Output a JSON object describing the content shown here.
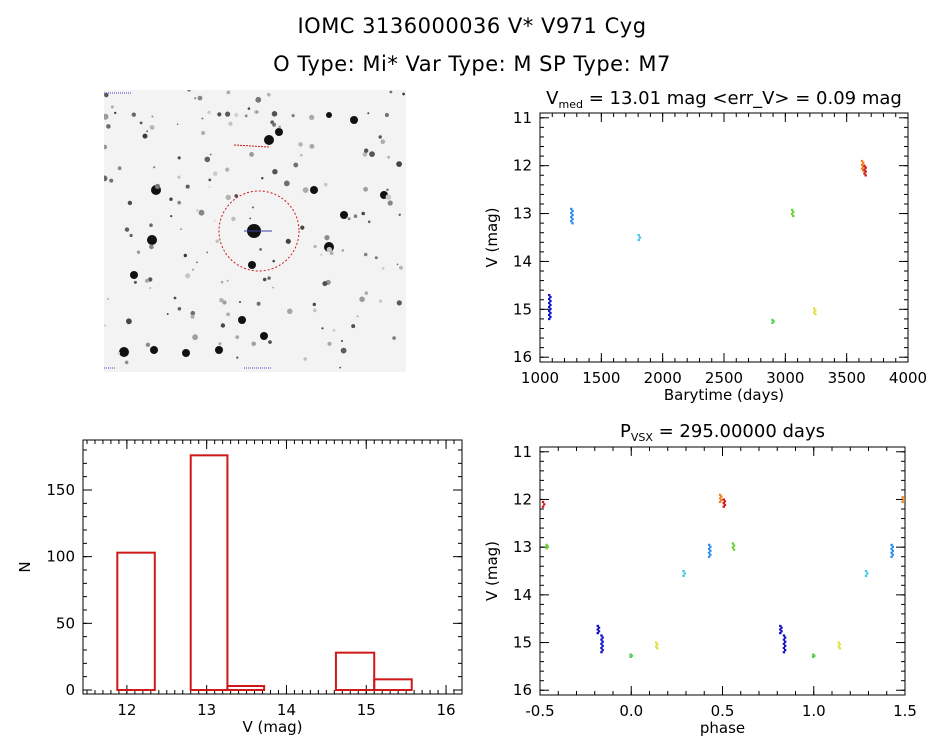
{
  "header": {
    "line1": "IOMC 3136000036    V* V971 Cyg",
    "line2": "O Type: Mi*  Var Type: M  SP Type: M7"
  },
  "chart_data": [
    {
      "type": "scatter",
      "title_parts": {
        "pre": "V",
        "sub": "med",
        "post": " = 13.01 mag <err_V> = 0.09 mag"
      },
      "xlabel": "Barytime (days)",
      "ylabel": "V (mag)",
      "xlim": [
        1000,
        4000
      ],
      "ylim": [
        16.1,
        10.9
      ],
      "xticks": [
        1000,
        1500,
        2000,
        2500,
        3000,
        3500,
        4000
      ],
      "yticks": [
        11,
        12,
        13,
        14,
        15,
        16
      ],
      "groups": [
        {
          "x": 1080,
          "y0": 14.7,
          "y1": 15.2,
          "color": "#1010c8"
        },
        {
          "x": 1260,
          "y0": 12.9,
          "y1": 13.2,
          "color": "#2a8cf0"
        },
        {
          "x": 1810,
          "y0": 13.45,
          "y1": 13.55,
          "color": "#3fc8e8"
        },
        {
          "x": 2900,
          "y0": 15.22,
          "y1": 15.28,
          "color": "#50d050"
        },
        {
          "x": 3060,
          "y0": 12.92,
          "y1": 13.05,
          "color": "#6ad030"
        },
        {
          "x": 3240,
          "y0": 14.98,
          "y1": 15.1,
          "color": "#e0e040"
        },
        {
          "x": 3630,
          "y0": 11.9,
          "y1": 12.1,
          "color": "#f08020"
        },
        {
          "x": 3650,
          "y0": 12.0,
          "y1": 12.2,
          "color": "#d01818"
        }
      ]
    },
    {
      "type": "bar",
      "xlabel": "V (mag)",
      "ylabel": "N",
      "xlim": [
        11.45,
        16.2
      ],
      "ylim": [
        0,
        180
      ],
      "xticks": [
        12,
        13,
        14,
        15,
        16
      ],
      "yticks": [
        0,
        50,
        100,
        150
      ],
      "bins": [
        {
          "x0": 11.88,
          "x1": 12.35,
          "n": 103
        },
        {
          "x0": 12.8,
          "x1": 13.26,
          "n": 176
        },
        {
          "x0": 13.26,
          "x1": 13.72,
          "n": 3
        },
        {
          "x0": 14.62,
          "x1": 15.1,
          "n": 28
        },
        {
          "x0": 15.1,
          "x1": 15.57,
          "n": 8
        }
      ],
      "color": "#d01818"
    },
    {
      "type": "scatter",
      "title_parts": {
        "pre": "P",
        "sub": "VSX",
        "post": " = 295.00000 days"
      },
      "xlabel": "phase",
      "ylabel": "V (mag)",
      "xlim": [
        -0.5,
        1.5
      ],
      "ylim": [
        16.1,
        10.9
      ],
      "xticks": [
        -0.5,
        0.0,
        0.5,
        1.0,
        1.5
      ],
      "xticklabels": [
        "-0.5",
        "0.0",
        "0.5",
        "1.0",
        "1.5"
      ],
      "yticks": [
        11,
        12,
        13,
        14,
        15,
        16
      ],
      "groups": [
        {
          "x": -0.48,
          "y0": 12.05,
          "y1": 12.15,
          "color": "#d01818"
        },
        {
          "x": -0.46,
          "y0": 12.95,
          "y1": 13.02,
          "color": "#6ad030"
        },
        {
          "x": -0.16,
          "y0": 14.85,
          "y1": 15.2,
          "color": "#1010c8"
        },
        {
          "x": -0.18,
          "y0": 14.65,
          "y1": 14.8,
          "color": "#1010c8"
        },
        {
          "x": 0.0,
          "y0": 15.25,
          "y1": 15.3,
          "color": "#50d050"
        },
        {
          "x": 0.14,
          "y0": 15.0,
          "y1": 15.12,
          "color": "#e0e040"
        },
        {
          "x": 0.29,
          "y0": 13.5,
          "y1": 13.6,
          "color": "#3fc8e8"
        },
        {
          "x": 0.43,
          "y0": 12.95,
          "y1": 13.2,
          "color": "#2a8cf0"
        },
        {
          "x": 0.49,
          "y0": 11.9,
          "y1": 12.05,
          "color": "#f08020"
        },
        {
          "x": 0.51,
          "y0": 12.0,
          "y1": 12.15,
          "color": "#d01818"
        },
        {
          "x": 0.56,
          "y0": 12.92,
          "y1": 13.05,
          "color": "#6ad030"
        },
        {
          "x": 0.84,
          "y0": 14.85,
          "y1": 15.2,
          "color": "#1010c8"
        },
        {
          "x": 0.82,
          "y0": 14.65,
          "y1": 14.8,
          "color": "#1010c8"
        },
        {
          "x": 1.0,
          "y0": 15.25,
          "y1": 15.3,
          "color": "#50d050"
        },
        {
          "x": 1.14,
          "y0": 15.0,
          "y1": 15.12,
          "color": "#e0e040"
        },
        {
          "x": 1.29,
          "y0": 13.5,
          "y1": 13.6,
          "color": "#3fc8e8"
        },
        {
          "x": 1.43,
          "y0": 12.95,
          "y1": 13.2,
          "color": "#2a8cf0"
        },
        {
          "x": 1.49,
          "y0": 11.95,
          "y1": 12.05,
          "color": "#f08020"
        }
      ]
    }
  ]
}
